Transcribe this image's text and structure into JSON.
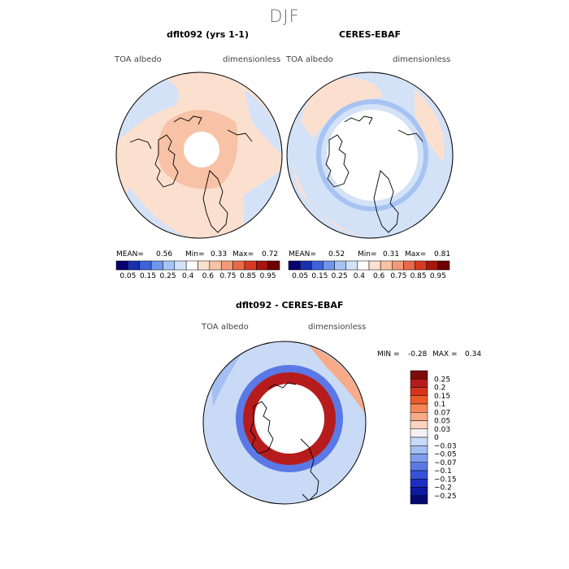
{
  "figure_title": "DJF",
  "chart_data": [
    {
      "type": "heatmap",
      "projection": "north polar stereographic",
      "title": "dflt092 (yrs 1-1)",
      "variable": "TOA albedo",
      "units": "dimensionless",
      "stats": {
        "mean_label": "MEAN=",
        "mean": "0.56",
        "min_label": "Min=",
        "min": "0.33",
        "max_label": "Max=",
        "max": "0.72"
      },
      "colorbar_levels": [
        "0.05",
        "0.15",
        "0.25",
        "0.4",
        "0.6",
        "0.75",
        "0.85",
        "0.95"
      ]
    },
    {
      "type": "heatmap",
      "projection": "north polar stereographic",
      "title": "CERES-EBAF",
      "variable": "TOA albedo",
      "units": "dimensionless",
      "stats": {
        "mean_label": "MEAN=",
        "mean": "0.52",
        "min_label": "Min=",
        "min": "0.31",
        "max_label": "Max=",
        "max": "0.81"
      },
      "colorbar_levels": [
        "0.05",
        "0.15",
        "0.25",
        "0.4",
        "0.6",
        "0.75",
        "0.85",
        "0.95"
      ]
    },
    {
      "type": "heatmap",
      "projection": "north polar stereographic",
      "title": "dflt092 - CERES-EBAF",
      "variable": "TOA albedo",
      "units": "dimensionless",
      "stats": {
        "min_label": "MIN =",
        "min": "-0.28",
        "max_label": "MAX =",
        "max": "0.34"
      },
      "colorbar_levels": [
        "0.25",
        "0.2",
        "0.15",
        "0.1",
        "0.07",
        "0.05",
        "0.03",
        "0",
        "−0.03",
        "−0.05",
        "−0.07",
        "−0.1",
        "−0.15",
        "−0.2",
        "−0.25"
      ]
    }
  ],
  "colors": {
    "albedo_scale": [
      "#08006e",
      "#1a2fb0",
      "#3c63d9",
      "#6f95ec",
      "#a6c3f3",
      "#d3e2f7",
      "#ffffff",
      "#fbe0d0",
      "#f7c2a5",
      "#f29a78",
      "#e86a49",
      "#d63a23",
      "#a8150d",
      "#6e0000"
    ],
    "diff_scale": [
      "#7b0c0c",
      "#b71c1c",
      "#d8331c",
      "#ec5a2a",
      "#f48659",
      "#f7ab88",
      "#fbd3bf",
      "#f3f1f3",
      "#c9daf6",
      "#a5bff2",
      "#7f9eee",
      "#5a79e6",
      "#3552d8",
      "#1d2fc0",
      "#0d1aa0",
      "#050a70"
    ],
    "land_outline": "#000000"
  }
}
